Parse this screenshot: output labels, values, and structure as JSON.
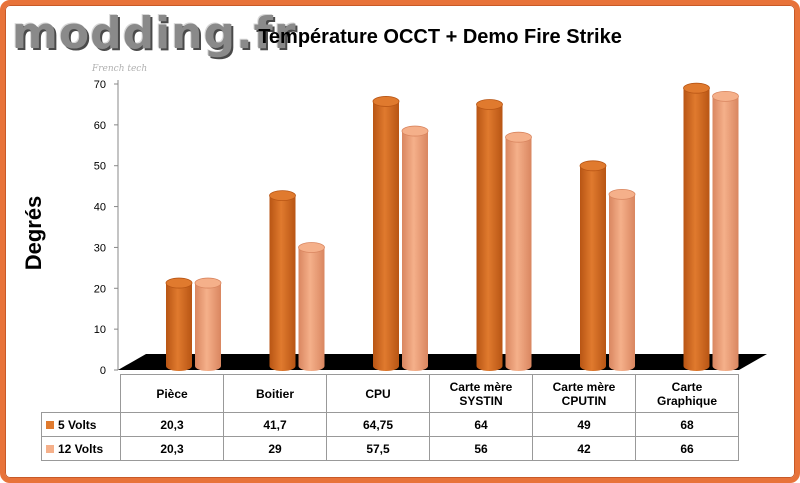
{
  "logo": {
    "text": "modding.fr",
    "tagline": "French tech"
  },
  "colors": {
    "series1": "#e07a2e",
    "series1_dark": "#b85514",
    "series2": "#f5b08a",
    "series2_dark": "#d98660",
    "floor": "#000000",
    "frame": "#e8733a"
  },
  "chart_data": {
    "type": "bar",
    "title": "Température OCCT + Demo Fire Strike",
    "ylabel": "Degrés",
    "xlabel": "",
    "ylim": [
      0,
      70
    ],
    "yticks": [
      0,
      10,
      20,
      30,
      40,
      50,
      60,
      70
    ],
    "categories": [
      "Pièce",
      "Boitier",
      "CPU",
      "Carte mère SYSTIN",
      "Carte mère CPUTIN",
      "Carte Graphique"
    ],
    "category_lines": [
      [
        "Pièce"
      ],
      [
        "Boitier"
      ],
      [
        "CPU"
      ],
      [
        "Carte mère",
        "SYSTIN"
      ],
      [
        "Carte mère",
        "CPUTIN"
      ],
      [
        "Carte",
        "Graphique"
      ]
    ],
    "series": [
      {
        "name": "5 Volts",
        "values": [
          20.3,
          41.7,
          64.75,
          64,
          49,
          68
        ],
        "labels": [
          "20,3",
          "41,7",
          "64,75",
          "64",
          "49",
          "68"
        ]
      },
      {
        "name": "12 Volts",
        "values": [
          20.3,
          29,
          57.5,
          56,
          42,
          66
        ],
        "labels": [
          "20,3",
          "29",
          "57,5",
          "56",
          "42",
          "66"
        ]
      }
    ],
    "grid": false,
    "legend": "data-table"
  }
}
